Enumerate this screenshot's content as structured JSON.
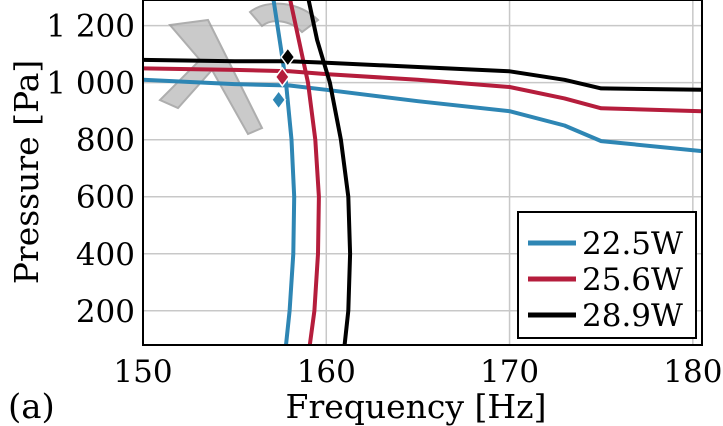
{
  "panel_label": "(a)",
  "colors": {
    "s1": "#2e86b4",
    "s2": "#b51d3c",
    "s3": "#000000",
    "grid": "#c8c8c8",
    "watermark": "#9a9a9a"
  },
  "chart_data": {
    "type": "line",
    "title": "",
    "xlabel": "Frequency [Hz]",
    "ylabel": "Pressure [Pa]",
    "xlim": [
      150,
      180.5
    ],
    "ylim": [
      80,
      1290
    ],
    "xticks": [
      150,
      160,
      170,
      180
    ],
    "xtick_labels": [
      "150",
      "160",
      "170",
      "180"
    ],
    "yticks": [
      200,
      400,
      600,
      800,
      1000,
      1200
    ],
    "ytick_labels": [
      "200",
      "400",
      "600",
      "800",
      "1 000",
      "1 200"
    ],
    "grid": true,
    "legend_position": "bottom-right",
    "series": [
      {
        "name": "22.5W",
        "color_key": "s1",
        "flat_branch": [
          [
            150,
            1010
          ],
          [
            155,
            995
          ],
          [
            158,
            990
          ],
          [
            160,
            975
          ],
          [
            165,
            935
          ],
          [
            170,
            900
          ],
          [
            173,
            850
          ],
          [
            175,
            795
          ],
          [
            180.5,
            760
          ]
        ],
        "steep_branch": [
          [
            157.1,
            1300
          ],
          [
            157.5,
            1130
          ],
          [
            157.8,
            1000
          ],
          [
            158.1,
            800
          ],
          [
            158.25,
            600
          ],
          [
            158.2,
            400
          ],
          [
            158,
            200
          ],
          [
            157.8,
            80
          ]
        ],
        "marker": [
          157.4,
          940
        ]
      },
      {
        "name": "25.6W",
        "color_key": "s2",
        "flat_branch": [
          [
            150,
            1050
          ],
          [
            155,
            1045
          ],
          [
            158,
            1040
          ],
          [
            160,
            1030
          ],
          [
            165,
            1010
          ],
          [
            170,
            985
          ],
          [
            173,
            945
          ],
          [
            175,
            910
          ],
          [
            180.5,
            900
          ]
        ],
        "steep_branch": [
          [
            158,
            1300
          ],
          [
            158.5,
            1150
          ],
          [
            159,
            1000
          ],
          [
            159.4,
            800
          ],
          [
            159.6,
            600
          ],
          [
            159.55,
            400
          ],
          [
            159.35,
            200
          ],
          [
            159.1,
            80
          ]
        ],
        "marker": [
          157.6,
          1020
        ]
      },
      {
        "name": "28.9W",
        "color_key": "s3",
        "flat_branch": [
          [
            150,
            1080
          ],
          [
            155,
            1075
          ],
          [
            158,
            1075
          ],
          [
            160,
            1070
          ],
          [
            165,
            1055
          ],
          [
            170,
            1040
          ],
          [
            173,
            1010
          ],
          [
            175,
            980
          ],
          [
            180.5,
            975
          ]
        ],
        "steep_branch": [
          [
            159,
            1300
          ],
          [
            159.5,
            1150
          ],
          [
            160.2,
            1000
          ],
          [
            160.8,
            800
          ],
          [
            161.2,
            600
          ],
          [
            161.3,
            400
          ],
          [
            161.2,
            200
          ],
          [
            161,
            80
          ]
        ],
        "marker": [
          157.9,
          1090
        ]
      }
    ]
  }
}
